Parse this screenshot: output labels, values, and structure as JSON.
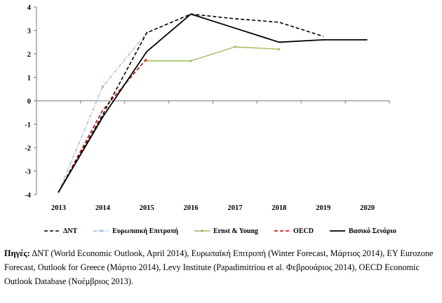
{
  "chart_data": {
    "type": "line",
    "title": "",
    "xlabel": "",
    "ylabel": "",
    "categories": [
      "2013",
      "2014",
      "2015",
      "2016",
      "2017",
      "2018",
      "2019",
      "2020"
    ],
    "y_ticks": [
      "4",
      "3",
      "2",
      "1",
      "0",
      "-1",
      "-2",
      "-3",
      "-4"
    ],
    "ylim": [
      -4,
      4
    ],
    "grid": false,
    "legend_position": "bottom",
    "series": [
      {
        "name": "ΔΝΤ",
        "color": "#000000",
        "style": "dashed",
        "values": [
          -3.9,
          -0.6,
          2.9,
          3.7,
          3.5,
          3.35,
          2.75,
          null
        ]
      },
      {
        "name": "Ευρωπαική Επιτροπή",
        "color": "#9fb4e0",
        "style": "dashdot",
        "values": [
          -3.9,
          0.6,
          2.9,
          null,
          null,
          null,
          null,
          null
        ]
      },
      {
        "name": "Ernst & Young",
        "color": "#9bbb59",
        "style": "solid-marker",
        "values": [
          null,
          null,
          1.7,
          1.7,
          2.3,
          2.2,
          null,
          null
        ]
      },
      {
        "name": "OECD",
        "color": "#c00000",
        "style": "dashed",
        "values": [
          -3.9,
          -0.4,
          1.8,
          null,
          null,
          null,
          null,
          null
        ]
      },
      {
        "name": "Βασικό Σενάριο",
        "color": "#000000",
        "style": "solid",
        "values": [
          -3.9,
          -0.7,
          2.1,
          3.7,
          3.1,
          2.5,
          2.6,
          2.6
        ]
      }
    ]
  },
  "source": {
    "label": "Πηγές:",
    "text": " ΔΝΤ (World Economic Outlook, April 2014), Ευρωπαϊκή Επιτροπή (Winter Forecast, Μάρτιος 2014), EY Eurozone Forecast, Outlook for Greece (Μάρτιο 2014), Levy Institute (Papadimitriou et al. Φεβρουάριος 2014), OECD Economic Outlook Database (Νοέμβριος 2013)."
  }
}
